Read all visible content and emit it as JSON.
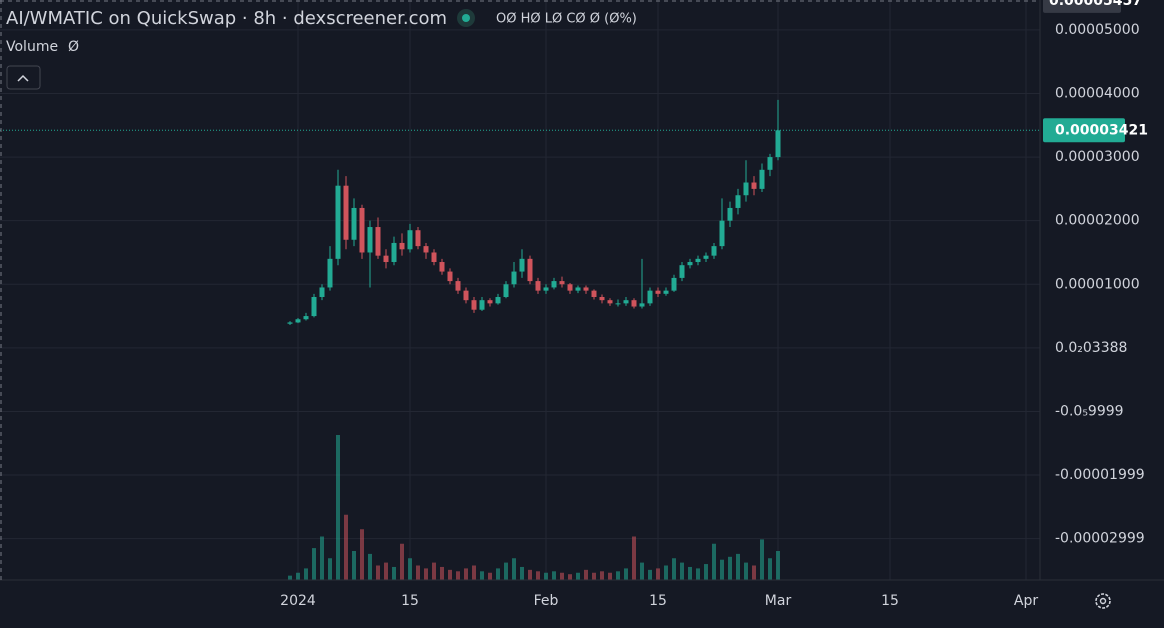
{
  "chart_data": {
    "type": "candlestick",
    "title": "AI/WMATIC on QuickSwap · 8h · dexscreener.com",
    "ohlc_legend": "OØ HØ LØ CØ Ø (Ø%)",
    "volume_label": "Volume",
    "volume_value": "Ø",
    "up_color": "#22ab94",
    "down_color": "#d0545c",
    "grid": true,
    "ylim": [
      -3.65e-05,
      5.47e-05
    ],
    "yticks": [
      {
        "value": 5e-05,
        "label": "0.00005000"
      },
      {
        "value": 4e-05,
        "label": "0.00004000"
      },
      {
        "value": 3e-05,
        "label": "0.00003000"
      },
      {
        "value": 2e-05,
        "label": "0.00002000"
      },
      {
        "value": 1e-05,
        "label": "0.00001000"
      },
      {
        "value": 3.388e-09,
        "label": "0.0₂03388"
      },
      {
        "value": -9.999e-06,
        "label": "-0.0₅9999"
      },
      {
        "value": -1.999e-05,
        "label": "-0.00001999"
      },
      {
        "value": -2.999e-05,
        "label": "-0.00002999"
      }
    ],
    "crosshair_price": {
      "value": 5.457e-05,
      "label": "0.00005457"
    },
    "last_price": {
      "value": 3.421e-05,
      "label": "0.00003421"
    },
    "xlim": [
      -37.25,
      92.75
    ],
    "xticks": [
      {
        "value": 0,
        "label": "2024"
      },
      {
        "value": 14,
        "label": "15"
      },
      {
        "value": 31,
        "label": "Feb"
      },
      {
        "value": 45,
        "label": "15"
      },
      {
        "value": 60,
        "label": "Mar"
      },
      {
        "value": 74,
        "label": "15"
      },
      {
        "value": 91,
        "label": "Apr"
      }
    ],
    "x": [
      -1,
      0,
      1,
      2,
      3,
      4,
      5,
      6,
      7,
      8,
      9,
      10,
      11,
      12,
      13,
      14,
      15,
      16,
      17,
      18,
      19,
      20,
      21,
      22,
      23,
      24,
      25,
      26,
      27,
      28,
      29,
      30,
      31,
      32,
      33,
      34,
      35,
      36,
      37,
      38,
      39,
      40,
      41,
      42,
      43,
      44,
      45,
      46,
      47,
      48,
      49,
      50,
      51,
      52,
      53,
      54,
      55,
      56,
      57,
      58,
      59,
      60
    ],
    "ohlc": [
      [
        3.8e-06,
        4.2e-06,
        3.6e-06,
        4e-06
      ],
      [
        4e-06,
        4.7e-06,
        3.9e-06,
        4.5e-06
      ],
      [
        4.5e-06,
        5.5e-06,
        4.3e-06,
        5e-06
      ],
      [
        5e-06,
        8.5e-06,
        4.8e-06,
        8e-06
      ],
      [
        8e-06,
        1e-05,
        7.5e-06,
        9.5e-06
      ],
      [
        9.5e-06,
        1.6e-05,
        9e-06,
        1.4e-05
      ],
      [
        1.4e-05,
        2.8e-05,
        1.3e-05,
        2.55e-05
      ],
      [
        2.55e-05,
        2.7e-05,
        1.55e-05,
        1.7e-05
      ],
      [
        1.7e-05,
        2.35e-05,
        1.6e-05,
        2.2e-05
      ],
      [
        2.2e-05,
        2.25e-05,
        1.4e-05,
        1.5e-05
      ],
      [
        1.5e-05,
        2e-05,
        9.5e-06,
        1.9e-05
      ],
      [
        1.9e-05,
        2.05e-05,
        1.4e-05,
        1.45e-05
      ],
      [
        1.45e-05,
        1.55e-05,
        1.25e-05,
        1.35e-05
      ],
      [
        1.35e-05,
        1.75e-05,
        1.3e-05,
        1.65e-05
      ],
      [
        1.65e-05,
        1.8e-05,
        1.45e-05,
        1.55e-05
      ],
      [
        1.55e-05,
        1.95e-05,
        1.5e-05,
        1.85e-05
      ],
      [
        1.85e-05,
        1.9e-05,
        1.55e-05,
        1.6e-05
      ],
      [
        1.6e-05,
        1.65e-05,
        1.4e-05,
        1.5e-05
      ],
      [
        1.5e-05,
        1.55e-05,
        1.3e-05,
        1.35e-05
      ],
      [
        1.35e-05,
        1.4e-05,
        1.15e-05,
        1.2e-05
      ],
      [
        1.2e-05,
        1.25e-05,
        1e-05,
        1.05e-05
      ],
      [
        1.05e-05,
        1.1e-05,
        8.5e-06,
        9e-06
      ],
      [
        9e-06,
        9.5e-06,
        7e-06,
        7.5e-06
      ],
      [
        7.5e-06,
        8e-06,
        5.5e-06,
        6e-06
      ],
      [
        6e-06,
        8e-06,
        5.8e-06,
        7.5e-06
      ],
      [
        7.5e-06,
        7.8e-06,
        6.5e-06,
        7e-06
      ],
      [
        7e-06,
        8.5e-06,
        6.8e-06,
        8e-06
      ],
      [
        8e-06,
        1.05e-05,
        7.8e-06,
        1e-05
      ],
      [
        1e-05,
        1.35e-05,
        9.5e-06,
        1.2e-05
      ],
      [
        1.2e-05,
        1.55e-05,
        1.1e-05,
        1.4e-05
      ],
      [
        1.4e-05,
        1.45e-05,
        1e-05,
        1.05e-05
      ],
      [
        1.05e-05,
        1.1e-05,
        8.5e-06,
        9e-06
      ],
      [
        9e-06,
        1e-05,
        8.5e-06,
        9.5e-06
      ],
      [
        9.5e-06,
        1.1e-05,
        9.2e-06,
        1.05e-05
      ],
      [
        1.05e-05,
        1.12e-05,
        9.5e-06,
        1e-05
      ],
      [
        1e-05,
        1.02e-05,
        8.5e-06,
        9e-06
      ],
      [
        9e-06,
        9.8e-06,
        8.6e-06,
        9.5e-06
      ],
      [
        9.5e-06,
        9.8e-06,
        8.5e-06,
        9e-06
      ],
      [
        9e-06,
        9.2e-06,
        7.6e-06,
        8e-06
      ],
      [
        8e-06,
        8.4e-06,
        7e-06,
        7.5e-06
      ],
      [
        7.5e-06,
        7.8e-06,
        6.6e-06,
        7e-06
      ],
      [
        7e-06,
        7.6e-06,
        6.5e-06,
        7e-06
      ],
      [
        7e-06,
        8e-06,
        6.6e-06,
        7.5e-06
      ],
      [
        7.5e-06,
        7.8e-06,
        6.2e-06,
        6.5e-06
      ],
      [
        6.5e-06,
        1.4e-05,
        6.2e-06,
        7e-06
      ],
      [
        7e-06,
        9.5e-06,
        6.6e-06,
        9e-06
      ],
      [
        9e-06,
        9.5e-06,
        8e-06,
        8.5e-06
      ],
      [
        8.5e-06,
        9.5e-06,
        8.2e-06,
        9e-06
      ],
      [
        9e-06,
        1.15e-05,
        8.8e-06,
        1.1e-05
      ],
      [
        1.1e-05,
        1.35e-05,
        1.05e-05,
        1.3e-05
      ],
      [
        1.3e-05,
        1.4e-05,
        1.25e-05,
        1.35e-05
      ],
      [
        1.35e-05,
        1.45e-05,
        1.3e-05,
        1.4e-05
      ],
      [
        1.4e-05,
        1.5e-05,
        1.35e-05,
        1.45e-05
      ],
      [
        1.45e-05,
        1.65e-05,
        1.4e-05,
        1.6e-05
      ],
      [
        1.6e-05,
        2.35e-05,
        1.55e-05,
        2e-05
      ],
      [
        2e-05,
        2.3e-05,
        1.9e-05,
        2.2e-05
      ],
      [
        2.2e-05,
        2.5e-05,
        2.1e-05,
        2.4e-05
      ],
      [
        2.4e-05,
        2.95e-05,
        2.3e-05,
        2.6e-05
      ],
      [
        2.6e-05,
        2.7e-05,
        2.4e-05,
        2.5e-05
      ],
      [
        2.5e-05,
        2.9e-05,
        2.45e-05,
        2.8e-05
      ],
      [
        2.8e-05,
        3.05e-05,
        2.7e-05,
        3e-05
      ],
      [
        3e-05,
        3.9e-05,
        2.95e-05,
        3.421e-05
      ]
    ],
    "volume": [
      3,
      5,
      8,
      22,
      30,
      15,
      100,
      45,
      20,
      35,
      18,
      10,
      12,
      9,
      25,
      15,
      10,
      8,
      12,
      9,
      7,
      6,
      8,
      10,
      6,
      5,
      8,
      12,
      15,
      9,
      7,
      6,
      5,
      6,
      5,
      4,
      5,
      7,
      5,
      6,
      5,
      6,
      8,
      30,
      12,
      7,
      8,
      10,
      15,
      12,
      9,
      8,
      11,
      25,
      14,
      16,
      18,
      12,
      10,
      28,
      15,
      20
    ]
  }
}
